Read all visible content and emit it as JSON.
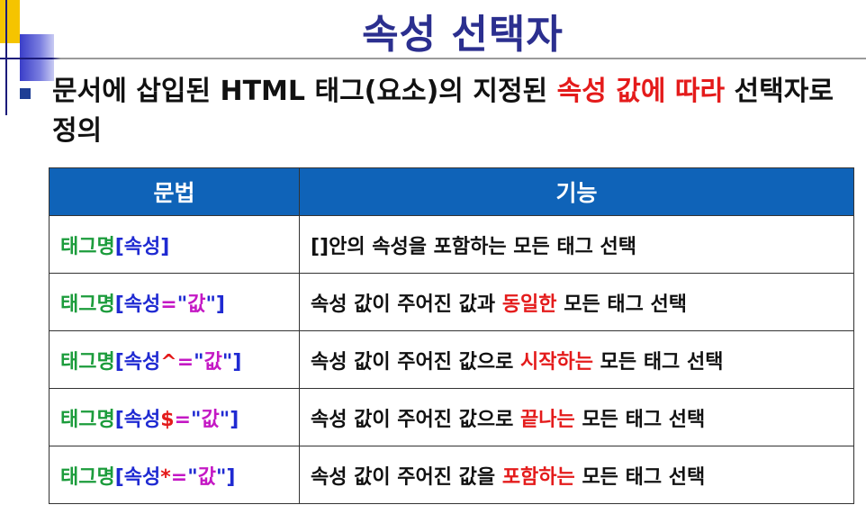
{
  "slide": {
    "title": "속성 선택자",
    "bullet": {
      "text_before": "문서에 삽입된 HTML 태그(요소)의 지정된 ",
      "highlight": "속성 값에 따라",
      "text_after": " 선택자로 정의"
    }
  },
  "table": {
    "headers": [
      "문법",
      "기능"
    ],
    "rows": [
      {
        "syntax": {
          "tag": "태그명",
          "open": "[",
          "attr": "속성",
          "op": "",
          "eq": "",
          "qopen": "",
          "val": "",
          "qclose": "",
          "close": "]"
        },
        "desc": {
          "before": "[]안의 속성을 포함하는 모든 태그 선택",
          "highlight": "",
          "after": ""
        }
      },
      {
        "syntax": {
          "tag": "태그명",
          "open": "[",
          "attr": "속성",
          "op": "",
          "eq": "=",
          "qopen": "\"",
          "val": "값",
          "qclose": "\"",
          "close": "]"
        },
        "desc": {
          "before": "속성 값이 주어진 값과 ",
          "highlight": "동일한",
          "after": " 모든 태그 선택"
        }
      },
      {
        "syntax": {
          "tag": "태그명",
          "open": "[",
          "attr": "속성",
          "op": "^",
          "eq": "=",
          "qopen": "\"",
          "val": "값",
          "qclose": "\"",
          "close": "]"
        },
        "desc": {
          "before": "속성 값이 주어진 값으로 ",
          "highlight": "시작하는",
          "after": " 모든 태그 선택"
        }
      },
      {
        "syntax": {
          "tag": "태그명",
          "open": "[",
          "attr": "속성",
          "op": "$",
          "eq": "=",
          "qopen": "\"",
          "val": "값",
          "qclose": "\"",
          "close": "]"
        },
        "desc": {
          "before": "속성 값이 주어진 값으로 ",
          "highlight": "끝나는",
          "after": " 모든 태그 선택"
        }
      },
      {
        "syntax": {
          "tag": "태그명",
          "open": "[",
          "attr": "속성",
          "op": "*",
          "eq": "=",
          "qopen": "\"",
          "val": "값",
          "qclose": "\"",
          "close": "]"
        },
        "desc": {
          "before": "속성 값이 주어진 값을 ",
          "highlight": "포함하는",
          "after": " 모든 태그 선택"
        }
      }
    ]
  },
  "colors": {
    "title": "#2b2f8f",
    "header_bg": "#0f63b8",
    "highlight": "#e41b1b",
    "tag_name": "#1c9c3c",
    "bracket_attr": "#1f2ad2",
    "value": "#c418c4"
  }
}
